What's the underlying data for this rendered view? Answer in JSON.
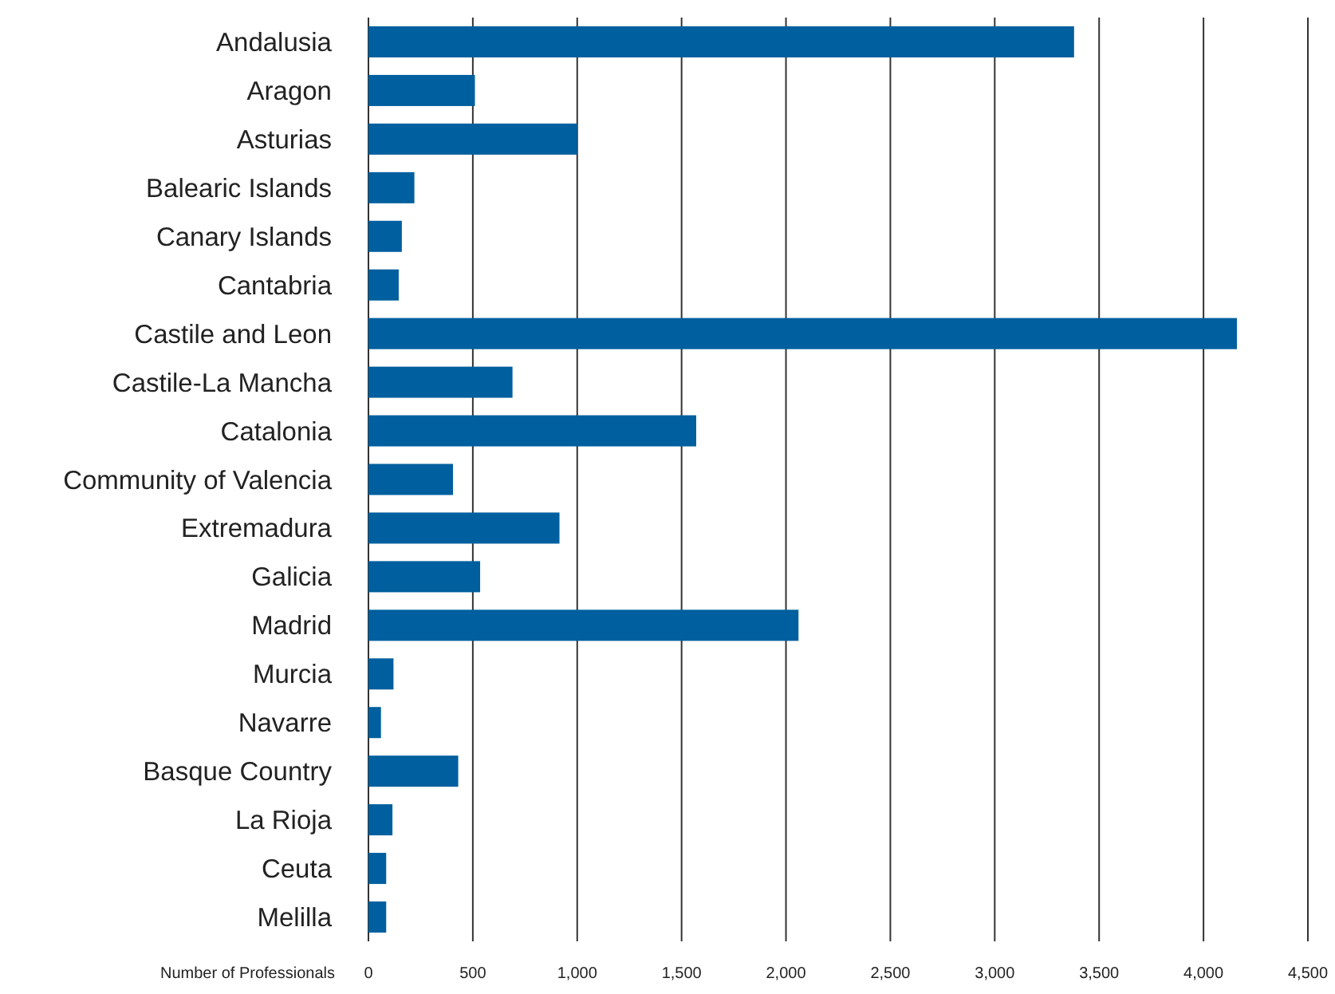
{
  "chart_data": {
    "type": "bar",
    "orientation": "horizontal",
    "xlabel": "Number of Professionals",
    "categories": [
      "Andalusia",
      "Aragon",
      "Asturias",
      "Balearic Islands",
      "Canary Islands",
      "Cantabria",
      "Castile and Leon",
      "Castile-La Mancha",
      "Catalonia",
      "Community of Valencia",
      "Extremadura",
      "Galicia",
      "Madrid",
      "Murcia",
      "Navarre",
      "Basque Country",
      "La Rioja",
      "Ceuta",
      "Melilla"
    ],
    "values": [
      3380,
      510,
      1000,
      220,
      160,
      145,
      4160,
      690,
      1570,
      405,
      915,
      535,
      2060,
      120,
      60,
      430,
      115,
      85,
      85
    ],
    "color": "#005f9e",
    "xlim": [
      0,
      4500
    ],
    "xticks": [
      0,
      500,
      {
        "value": 1000,
        "label": "1,000"
      },
      {
        "value": 1500,
        "label": "1,500"
      },
      {
        "value": 2000,
        "label": "2,000"
      },
      {
        "value": 2500,
        "label": "2,500"
      },
      {
        "value": 3000,
        "label": "3,000"
      },
      {
        "value": 3500,
        "label": "3,500"
      },
      {
        "value": 4000,
        "label": "4,000"
      },
      {
        "value": 4500,
        "label": "4,500"
      }
    ],
    "grid": "x"
  }
}
